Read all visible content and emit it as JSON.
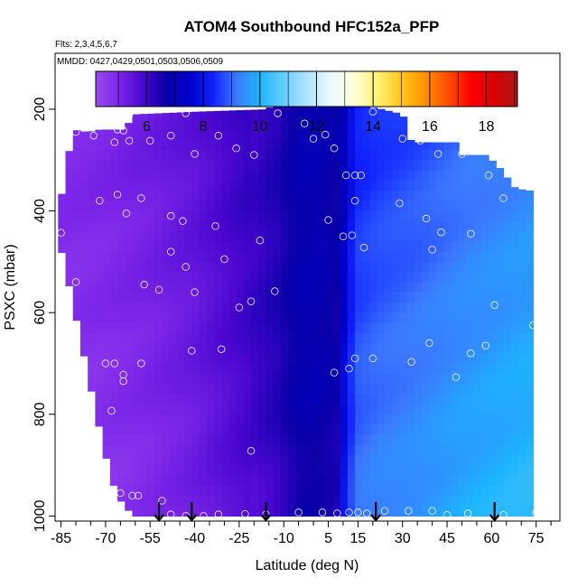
{
  "chart_data": {
    "type": "heatmap",
    "title": "ATOM4 Southbound HFC152a_PFP",
    "subtitle_flights": "Flts: 2,3,4,5,6,7",
    "subtitle_dates": "MMDD: 0427,0429,0501,0503,0506,0509",
    "xlabel": "Latitude (deg N)",
    "ylabel": "PSXC (mbar)",
    "xlim": [
      -87,
      83
    ],
    "ylim": [
      1010,
      90
    ],
    "x_ticks": [
      -85,
      -70,
      -55,
      -40,
      -25,
      -10,
      5,
      15,
      30,
      45,
      60,
      75
    ],
    "x_tick_labels": [
      "-85",
      "-70",
      "-55",
      "-40",
      "-25",
      "-10",
      "5",
      "15",
      "30",
      "45",
      "60",
      "75"
    ],
    "y_ticks": [
      200,
      400,
      600,
      800,
      1000
    ],
    "y_tick_labels": [
      "200",
      "400",
      "600",
      "800",
      "1000"
    ],
    "colorbar": {
      "range": [
        4.2,
        19.1
      ],
      "ticks": [
        6,
        8,
        10,
        12,
        14,
        16,
        18
      ],
      "tick_labels": [
        "6",
        "8",
        "10",
        "12",
        "14",
        "16",
        "18"
      ],
      "colors": [
        "#9b4af0",
        "#7b26e8",
        "#4a06d0",
        "#0a00a8",
        "#0000c8",
        "#1020ff",
        "#3c78ff",
        "#1cb4ff",
        "#66ccff",
        "#b0e4ff",
        "#eaf8ff",
        "#ffffd8",
        "#fff27a",
        "#ffc820",
        "#ff9400",
        "#ff5000",
        "#ff0000",
        "#dc0000",
        "#a81818"
      ]
    },
    "field_anchors": {
      "latitudes": [
        -85,
        -70,
        -55,
        -40,
        -25,
        -12,
        -5,
        0,
        8,
        12,
        15,
        22,
        35,
        50,
        72
      ],
      "values": [
        4.8,
        4.9,
        5.1,
        5.4,
        5.9,
        6.4,
        6.9,
        7.0,
        6.7,
        8.0,
        8.6,
        8.8,
        9.0,
        9.3,
        9.6
      ]
    },
    "coverage_columns": [
      {
        "lat": -85,
        "p_top": 375,
        "p_bottom": 475
      },
      {
        "lat": -81,
        "p_top": 240,
        "p_bottom": 580
      },
      {
        "lat": -76,
        "p_top": 245,
        "p_bottom": 720
      },
      {
        "lat": -72,
        "p_top": 240,
        "p_bottom": 830
      },
      {
        "lat": -68,
        "p_top": 240,
        "p_bottom": 930
      },
      {
        "lat": -64,
        "p_top": 240,
        "p_bottom": 980
      },
      {
        "lat": -60,
        "p_top": 210,
        "p_bottom": 1000
      },
      {
        "lat": -40,
        "p_top": 205,
        "p_bottom": 1000
      },
      {
        "lat": -15,
        "p_top": 200,
        "p_bottom": 1000
      },
      {
        "lat": -12,
        "p_top": 160,
        "p_bottom": 1000
      },
      {
        "lat": 23,
        "p_top": 200,
        "p_bottom": 1000
      },
      {
        "lat": 30,
        "p_top": 210,
        "p_bottom": 1000
      },
      {
        "lat": 33,
        "p_top": 265,
        "p_bottom": 1000
      },
      {
        "lat": 48,
        "p_top": 265,
        "p_bottom": 1000
      },
      {
        "lat": 50,
        "p_top": 290,
        "p_bottom": 1000
      },
      {
        "lat": 58,
        "p_top": 290,
        "p_bottom": 1000
      },
      {
        "lat": 62,
        "p_top": 310,
        "p_bottom": 1000
      },
      {
        "lat": 68,
        "p_top": 355,
        "p_bottom": 1000
      },
      {
        "lat": 72,
        "p_top": 360,
        "p_bottom": 1000
      }
    ],
    "sample_points": [
      [
        -62,
        210
      ],
      [
        -43,
        208
      ],
      [
        -12,
        208
      ],
      [
        4,
        250
      ],
      [
        20,
        205
      ],
      [
        30,
        258
      ],
      [
        36,
        262
      ],
      [
        -80,
        245
      ],
      [
        -68,
        227
      ],
      [
        -66,
        240
      ],
      [
        -64,
        242
      ],
      [
        -74,
        252
      ],
      [
        -67,
        265
      ],
      [
        -62,
        262
      ],
      [
        -55,
        262
      ],
      [
        -48,
        252
      ],
      [
        -32,
        252
      ],
      [
        -40,
        288
      ],
      [
        -26,
        277
      ],
      [
        -20,
        290
      ],
      [
        -3,
        228
      ],
      [
        0,
        258
      ],
      [
        7,
        277
      ],
      [
        11,
        330
      ],
      [
        14,
        330
      ],
      [
        16,
        330
      ],
      [
        42,
        288
      ],
      [
        50,
        288
      ],
      [
        59,
        330
      ],
      [
        64,
        375
      ],
      [
        77,
        373
      ],
      [
        -85,
        443
      ],
      [
        -72,
        380
      ],
      [
        -66,
        368
      ],
      [
        -63,
        405
      ],
      [
        -58,
        375
      ],
      [
        -48,
        410
      ],
      [
        -44,
        420
      ],
      [
        -33,
        430
      ],
      [
        -18,
        458
      ],
      [
        -48,
        480
      ],
      [
        -43,
        510
      ],
      [
        -30,
        495
      ],
      [
        5,
        418
      ],
      [
        10,
        450
      ],
      [
        13,
        448
      ],
      [
        14,
        380
      ],
      [
        17,
        472
      ],
      [
        29,
        385
      ],
      [
        38,
        415
      ],
      [
        43,
        442
      ],
      [
        40,
        476
      ],
      [
        53,
        445
      ],
      [
        -80,
        540
      ],
      [
        -57,
        545
      ],
      [
        -52,
        555
      ],
      [
        -40,
        560
      ],
      [
        -21,
        578
      ],
      [
        -13,
        558
      ],
      [
        -25,
        590
      ],
      [
        -70,
        700
      ],
      [
        -67,
        700
      ],
      [
        -64,
        722
      ],
      [
        -64,
        735
      ],
      [
        -58,
        700
      ],
      [
        -41,
        675
      ],
      [
        -31,
        672
      ],
      [
        -68,
        793
      ],
      [
        -21,
        872
      ],
      [
        12,
        710
      ],
      [
        7,
        718
      ],
      [
        14,
        690
      ],
      [
        20,
        690
      ],
      [
        33,
        697
      ],
      [
        39,
        660
      ],
      [
        48,
        727
      ],
      [
        53,
        680
      ],
      [
        58,
        665
      ],
      [
        61,
        585
      ],
      [
        74,
        625
      ],
      [
        -71,
        965
      ],
      [
        -65,
        955
      ],
      [
        -61,
        960
      ],
      [
        -59,
        960
      ],
      [
        -51,
        970
      ],
      [
        -48,
        997
      ],
      [
        -43,
        1000
      ],
      [
        -37,
        1000
      ],
      [
        -32,
        997
      ],
      [
        -23,
        996
      ],
      [
        -16,
        997
      ],
      [
        -5,
        993
      ],
      [
        3,
        993
      ],
      [
        8,
        995
      ],
      [
        12,
        993
      ],
      [
        15,
        993
      ],
      [
        18,
        995
      ],
      [
        24,
        990
      ],
      [
        32,
        990
      ],
      [
        40,
        990
      ],
      [
        45,
        998
      ],
      [
        52,
        995
      ],
      [
        64,
        998
      ],
      [
        75,
        993
      ]
    ],
    "markers": {
      "label": "flight-profile-arrows",
      "latitudes": [
        -52,
        -41,
        -16,
        21,
        61
      ]
    }
  }
}
